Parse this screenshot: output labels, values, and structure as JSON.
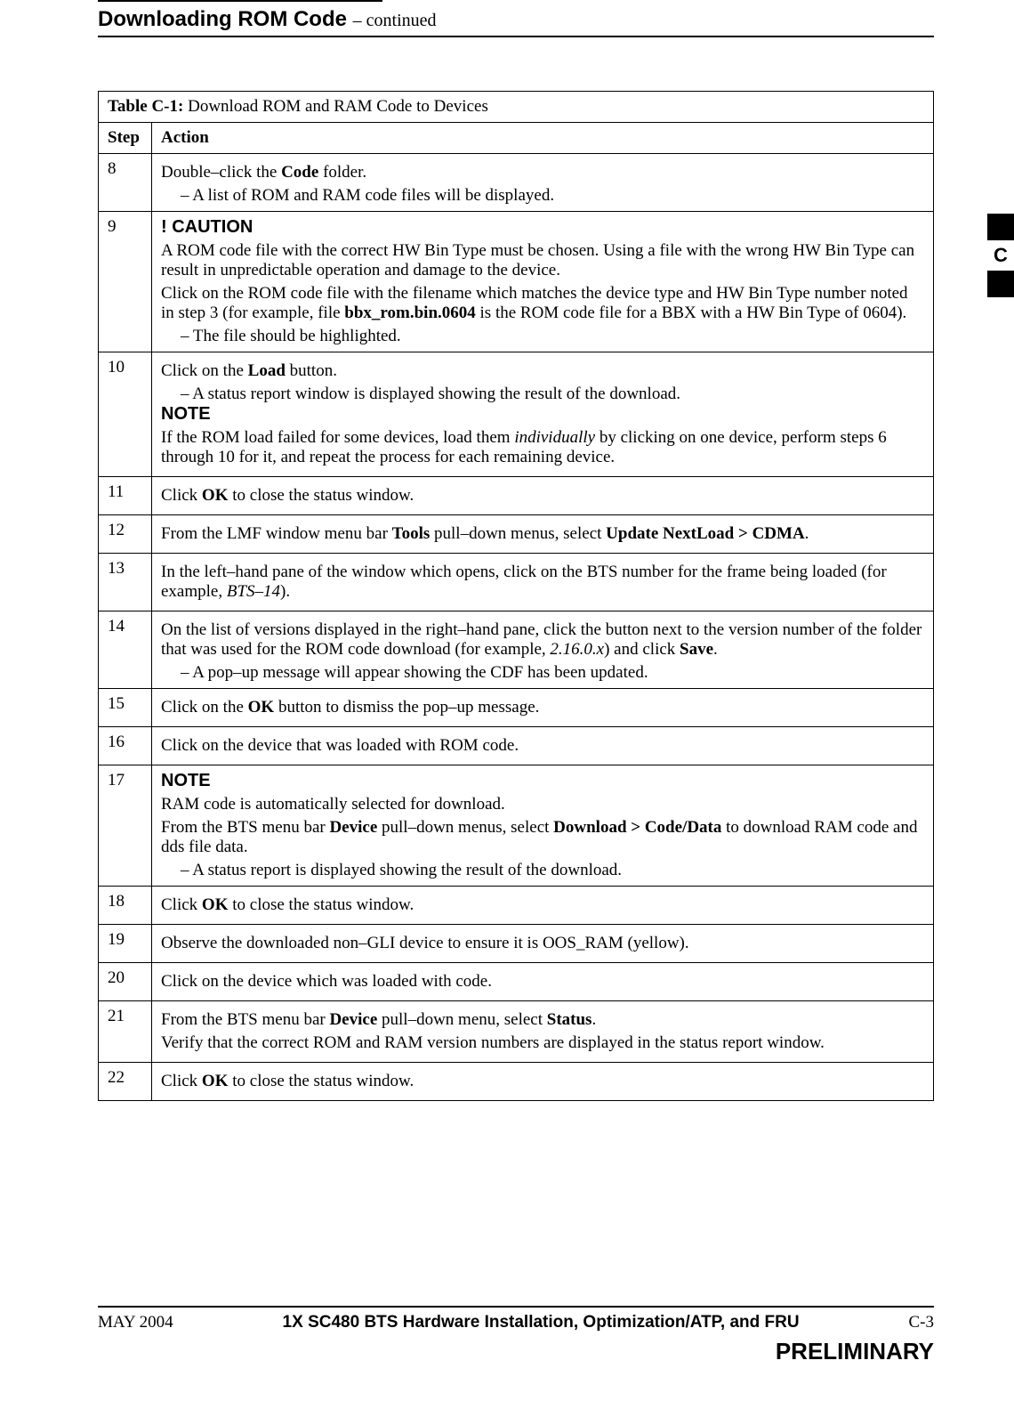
{
  "header": {
    "title": "Downloading ROM Code",
    "continued": "– continued"
  },
  "side_tab": {
    "letter": "C"
  },
  "table": {
    "caption_label": "Table C-1:",
    "caption_text": " Download ROM and RAM Code to Devices",
    "col_step": "Step",
    "col_action": "Action",
    "rows": [
      {
        "step": "8",
        "parts": [
          {
            "type": "line",
            "pre": "Double–click the ",
            "bold": "Code",
            "post": " folder."
          },
          {
            "type": "sub",
            "text": "A list of ROM and RAM code files will be displayed."
          }
        ]
      },
      {
        "step": "9",
        "parts": [
          {
            "type": "callout",
            "text": "! CAUTION"
          },
          {
            "type": "para",
            "text": "A ROM code file with the correct HW Bin Type must be chosen. Using a file with the wrong HW Bin Type can result in unpredictable operation and damage to the device."
          },
          {
            "type": "line3",
            "pre": "Click on the ROM code file with the filename which matches the device type and HW Bin Type number noted in step 3 (for example, file ",
            "bold": "bbx_rom.bin.0604",
            "post": " is the ROM code file for a BBX with a HW Bin Type of 0604)."
          },
          {
            "type": "sub",
            "text": "The file should be highlighted."
          }
        ]
      },
      {
        "step": "10",
        "parts": [
          {
            "type": "line",
            "pre": "Click on the ",
            "bold": "Load",
            "post": " button."
          },
          {
            "type": "sub",
            "text": "A status report window is displayed showing the result of the download."
          },
          {
            "type": "callout",
            "text": "NOTE"
          },
          {
            "type": "italicword",
            "pre": "If the ROM load failed for some devices, load them ",
            "ital": "individually",
            "post": " by clicking on one device, perform steps 6 through 10 for it, and repeat the process for each remaining device."
          }
        ]
      },
      {
        "step": "11",
        "parts": [
          {
            "type": "line",
            "pre": "Click ",
            "bold": "OK",
            "post": " to close the status window."
          }
        ]
      },
      {
        "step": "12",
        "parts": [
          {
            "type": "twobold",
            "pre": "From the LMF window menu bar ",
            "b1": "Tools",
            "mid": " pull–down menus, select ",
            "b2": "Update NextLoad > CDMA",
            "post": "."
          }
        ]
      },
      {
        "step": "13",
        "parts": [
          {
            "type": "italicword",
            "pre": "In the left–hand pane of the window which opens, click on the BTS number for the frame being loaded (for example, ",
            "ital": "BTS–14",
            "post": ")."
          }
        ]
      },
      {
        "step": "14",
        "parts": [
          {
            "type": "italicbold",
            "pre": "On the list of versions displayed in the right–hand pane, click the button next to the version number of the folder that was used for the ROM code download (for example, ",
            "ital": "2.16.0.x",
            "mid": ") and click ",
            "bold": "Save",
            "post": "."
          },
          {
            "type": "sub",
            "text": "A pop–up message will appear showing the CDF has been updated."
          }
        ]
      },
      {
        "step": "15",
        "parts": [
          {
            "type": "line",
            "pre": "Click on the ",
            "bold": "OK",
            "post": " button to dismiss the pop–up message."
          }
        ]
      },
      {
        "step": "16",
        "parts": [
          {
            "type": "para",
            "text": "Click on the device that was loaded with ROM code."
          }
        ]
      },
      {
        "step": "17",
        "parts": [
          {
            "type": "callout",
            "text": "NOTE"
          },
          {
            "type": "para",
            "text": "RAM code is automatically selected for download."
          },
          {
            "type": "twobold",
            "pre": "From the BTS menu bar ",
            "b1": "Device",
            "mid": " pull–down menus, select ",
            "b2": "Download > Code/Data",
            "post": " to download RAM code and dds file data."
          },
          {
            "type": "sub",
            "text": "A status report is displayed showing the result of the download."
          }
        ]
      },
      {
        "step": "18",
        "parts": [
          {
            "type": "line",
            "pre": "Click ",
            "bold": "OK",
            "post": " to close the status window."
          }
        ]
      },
      {
        "step": "19",
        "parts": [
          {
            "type": "para",
            "text": "Observe the downloaded non–GLI device to ensure it is OOS_RAM (yellow)."
          }
        ]
      },
      {
        "step": "20",
        "parts": [
          {
            "type": "para",
            "text": "Click on the device which was loaded with code."
          }
        ]
      },
      {
        "step": "21",
        "parts": [
          {
            "type": "twobold",
            "pre": "From the BTS menu bar ",
            "b1": "Device",
            "mid": " pull–down menu, select ",
            "b2": "Status",
            "post": "."
          },
          {
            "type": "para",
            "text": "Verify that the correct ROM and RAM version numbers are displayed in the status report window."
          }
        ]
      },
      {
        "step": "22",
        "parts": [
          {
            "type": "line",
            "pre": "Click ",
            "bold": "OK",
            "post": " to close the status window."
          }
        ]
      }
    ]
  },
  "footer": {
    "left": "MAY 2004",
    "center": "1X SC480 BTS Hardware Installation, Optimization/ATP, and FRU",
    "right": "C-3",
    "prelim": "PRELIMINARY"
  }
}
